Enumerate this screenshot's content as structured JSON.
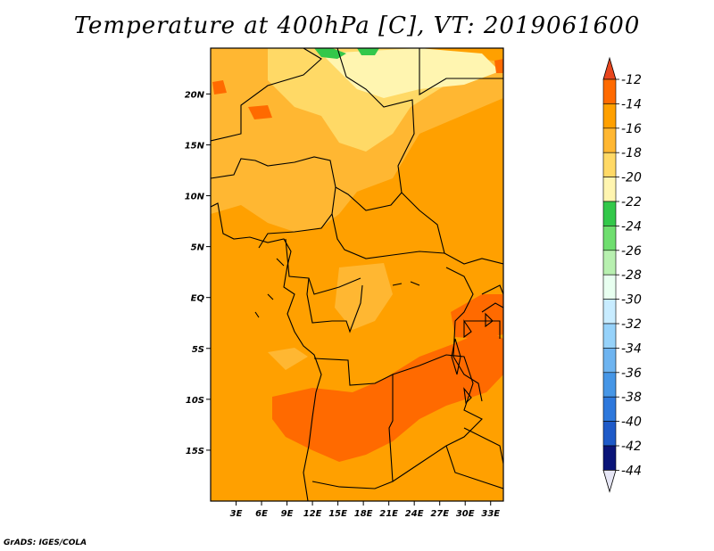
{
  "title": "Temperature at 400hPa [C], VT: 2019061600",
  "credit": "GrADS: IGES/COLA",
  "map": {
    "lat_range": [
      -20,
      24.5
    ],
    "lon_range": [
      0,
      34.5
    ],
    "lat_ticks": [
      {
        "value": 20,
        "label": "20N"
      },
      {
        "value": 15,
        "label": "15N"
      },
      {
        "value": 10,
        "label": "10N"
      },
      {
        "value": 5,
        "label": "5N"
      },
      {
        "value": 0,
        "label": "EQ"
      },
      {
        "value": -5,
        "label": "5S"
      },
      {
        "value": -10,
        "label": "10S"
      },
      {
        "value": -15,
        "label": "15S"
      }
    ],
    "lon_ticks": [
      {
        "value": 3,
        "label": "3E"
      },
      {
        "value": 6,
        "label": "6E"
      },
      {
        "value": 9,
        "label": "9E"
      },
      {
        "value": 12,
        "label": "12E"
      },
      {
        "value": 15,
        "label": "15E"
      },
      {
        "value": 18,
        "label": "18E"
      },
      {
        "value": 21,
        "label": "21E"
      },
      {
        "value": 24,
        "label": "24E"
      },
      {
        "value": 27,
        "label": "27E"
      },
      {
        "value": 30,
        "label": "30E"
      },
      {
        "value": 33,
        "label": "33E"
      }
    ]
  },
  "colorbar": {
    "levels": [
      {
        "label": "-12",
        "color": "#ff6a00"
      },
      {
        "label": "-14",
        "color": "#ffa000"
      },
      {
        "label": "-16",
        "color": "#ffb732"
      },
      {
        "label": "-18",
        "color": "#ffd966"
      },
      {
        "label": "-20",
        "color": "#fff5b0"
      },
      {
        "label": "-22",
        "color": "#33c84a"
      },
      {
        "label": "-24",
        "color": "#6fde6f"
      },
      {
        "label": "-26",
        "color": "#b8f0b0"
      },
      {
        "label": "-28",
        "color": "#e8fff0"
      },
      {
        "label": "-30",
        "color": "#c8ecff"
      },
      {
        "label": "-32",
        "color": "#96d2fa"
      },
      {
        "label": "-34",
        "color": "#6eb4f0"
      },
      {
        "label": "-36",
        "color": "#4696e6"
      },
      {
        "label": "-38",
        "color": "#2d78dc"
      },
      {
        "label": "-40",
        "color": "#1e5ac8"
      },
      {
        "label": "-42",
        "color": "#1446a0"
      },
      {
        "label": "-44",
        "color": "#0a1478"
      }
    ],
    "top_triangle_color": "#e8461e",
    "bottom_triangle_color": "#e6e6f5",
    "interval_colors": [
      "#ff6a00",
      "#ffa000",
      "#ffb732",
      "#ffd966",
      "#fff5b0",
      "#33c84a",
      "#6fde6f",
      "#b8f0b0",
      "#e8fff0",
      "#c8ecff",
      "#96d2fa",
      "#6eb4f0",
      "#4696e6",
      "#2d78dc",
      "#1e5ac8",
      "#0a1478"
    ]
  },
  "field_colors": {
    "base": "#ffa000",
    "warm": "#ff6a00",
    "mild": "#ffb732",
    "cool": "#ffd966",
    "cold": "#fff5b0",
    "green": "#33c84a"
  }
}
